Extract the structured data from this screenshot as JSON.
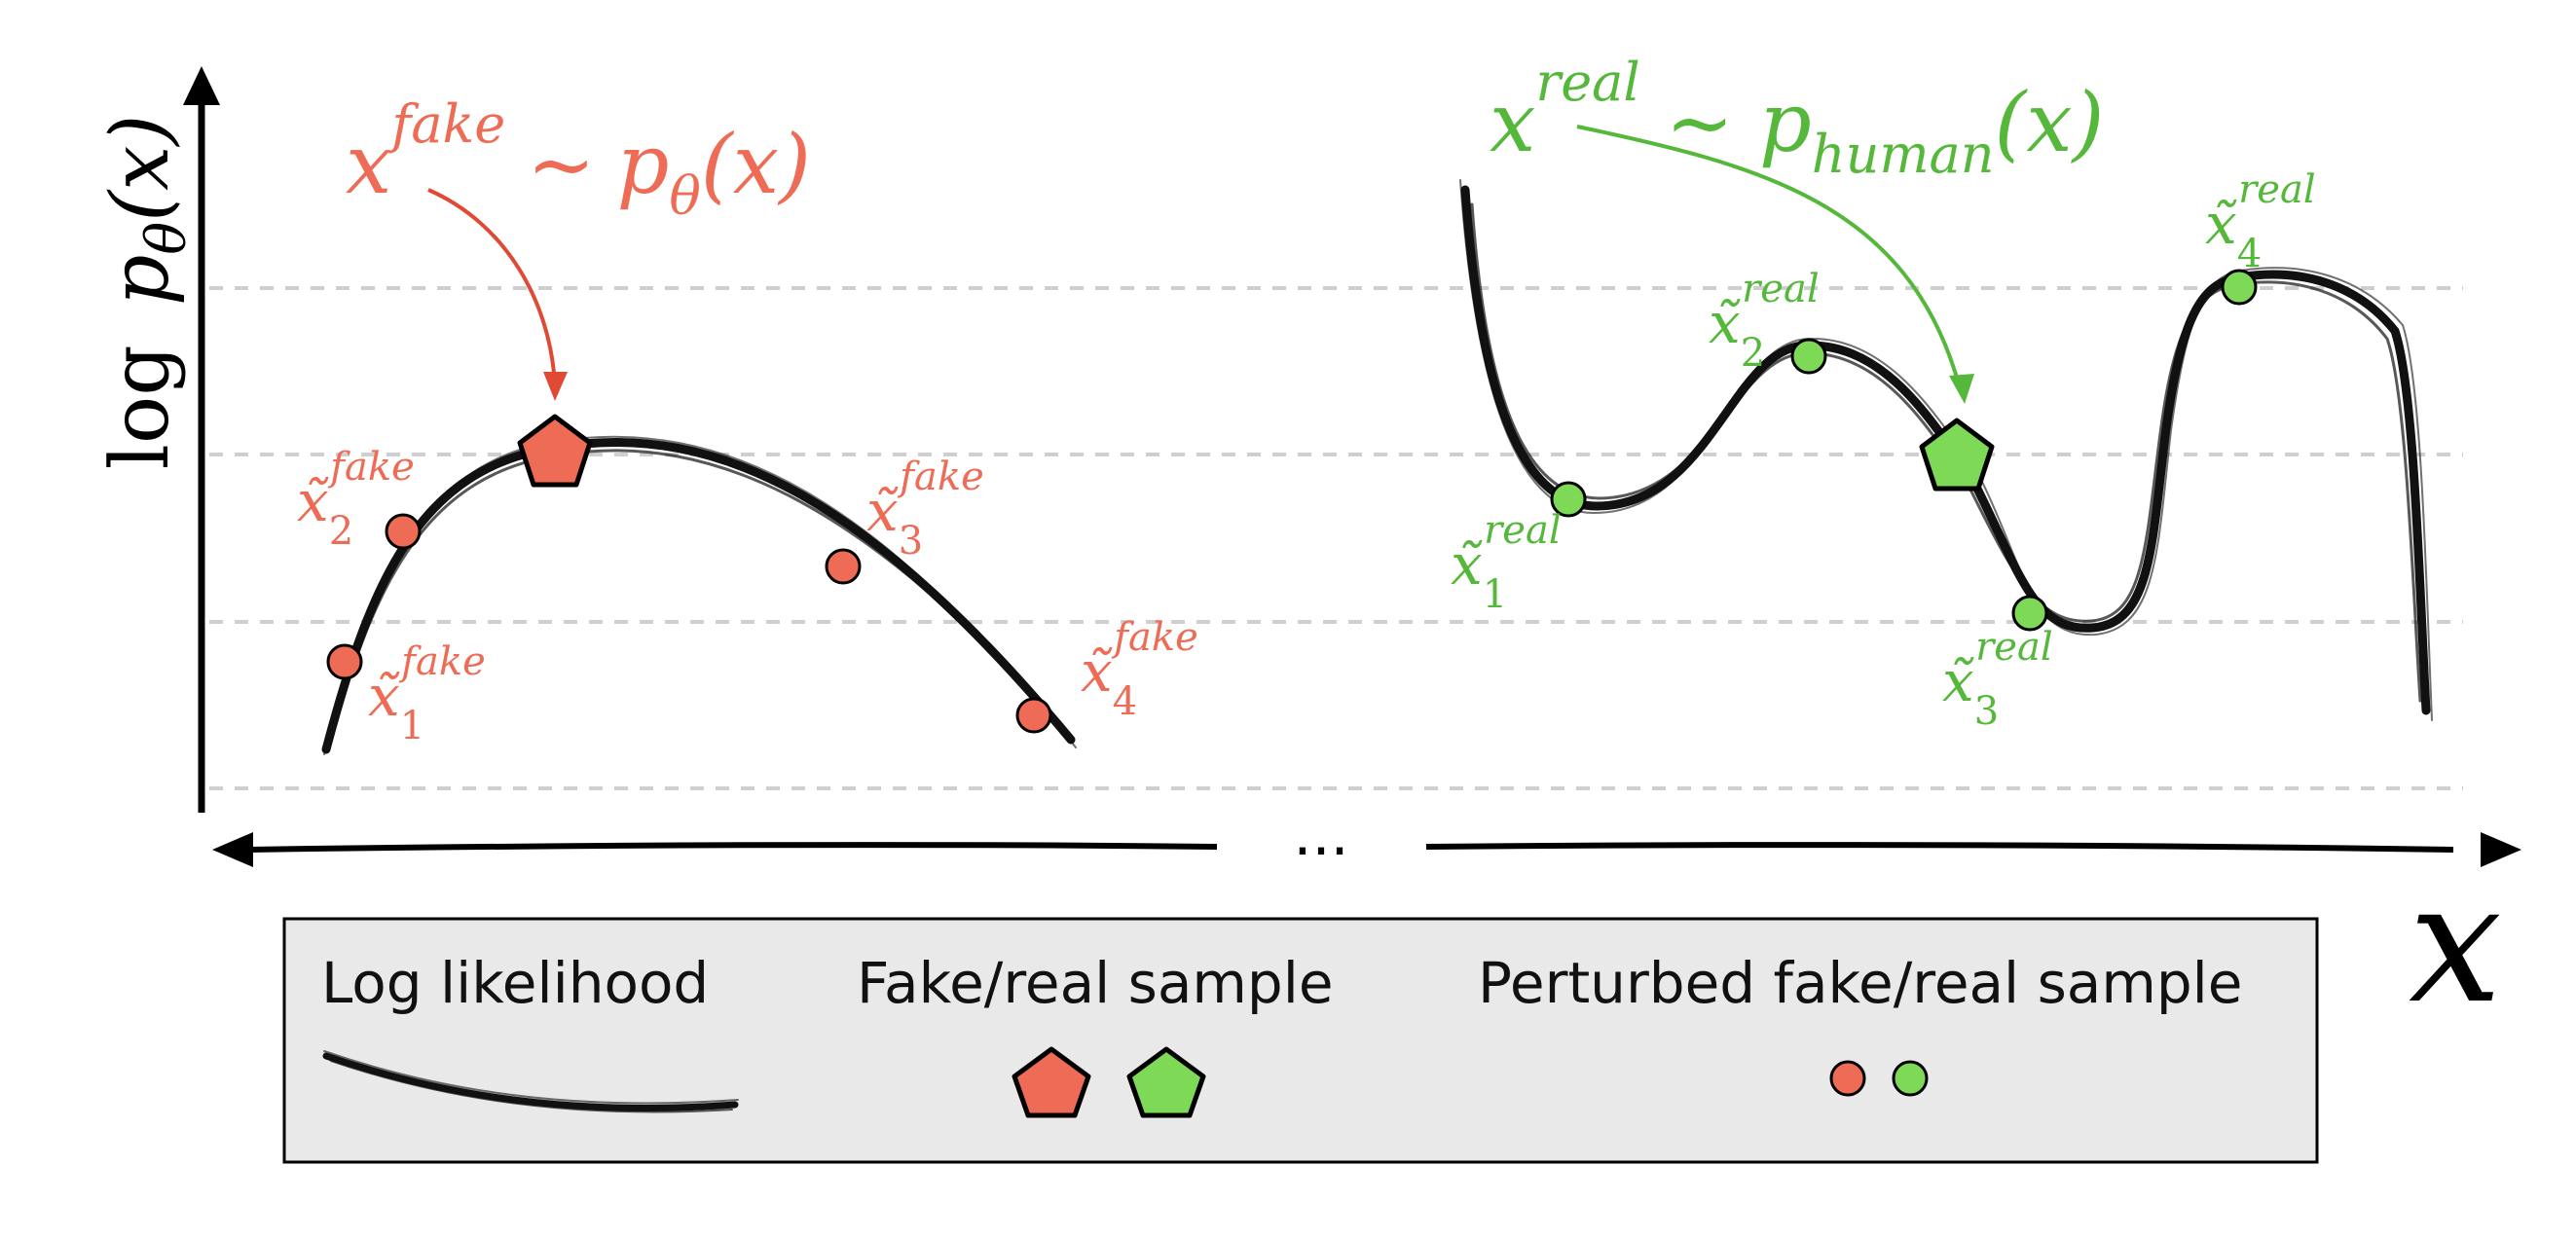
{
  "y_axis_label": {
    "prefix": "log",
    "p": "p",
    "sub": "θ",
    "arg": "(x)"
  },
  "x_axis_label": "x",
  "ellipsis": "...",
  "fake_title": {
    "x": "x",
    "sup": "fake",
    "tilde": "~",
    "p": "p",
    "sub": "θ",
    "arg": "(x)"
  },
  "real_title": {
    "x": "x",
    "sup": "real",
    "tilde": "~",
    "p": "p",
    "sub": "human",
    "arg": "(x)"
  },
  "fake_points": [
    {
      "base": "x̃",
      "sub": "1",
      "sup": "fake"
    },
    {
      "base": "x̃",
      "sub": "2",
      "sup": "fake"
    },
    {
      "base": "x̃",
      "sub": "3",
      "sup": "fake"
    },
    {
      "base": "x̃",
      "sub": "4",
      "sup": "fake"
    }
  ],
  "real_points": [
    {
      "base": "x̃",
      "sub": "1",
      "sup": "real"
    },
    {
      "base": "x̃",
      "sub": "2",
      "sup": "real"
    },
    {
      "base": "x̃",
      "sub": "3",
      "sup": "real"
    },
    {
      "base": "x̃",
      "sub": "4",
      "sup": "real"
    }
  ],
  "legend": {
    "log_likelihood": "Log likelihood",
    "sample": "Fake/real sample",
    "perturbed": "Perturbed fake/real sample"
  },
  "colors": {
    "fake": "#ee6b55",
    "real": "#56b83a",
    "fake_dark": "#e04a35",
    "real_light": "#7ed957"
  }
}
